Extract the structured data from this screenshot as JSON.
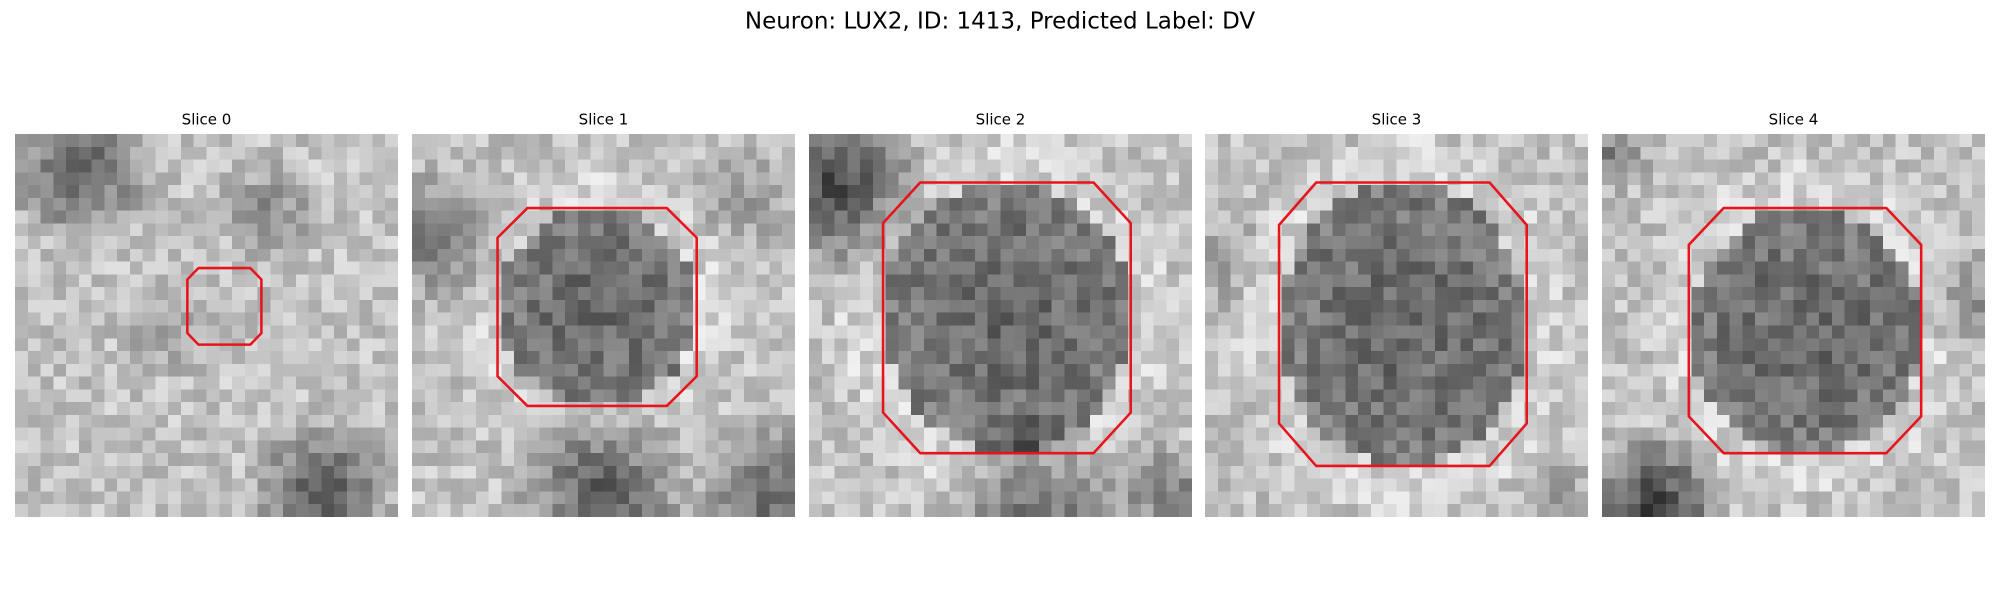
{
  "title": "Neuron: LUX2, ID: 1413, Predicted Label: DV",
  "panels": [
    {
      "title": "Slice 0"
    },
    {
      "title": "Slice 1"
    },
    {
      "title": "Slice 2"
    },
    {
      "title": "Slice 3"
    },
    {
      "title": "Slice 4"
    }
  ]
}
